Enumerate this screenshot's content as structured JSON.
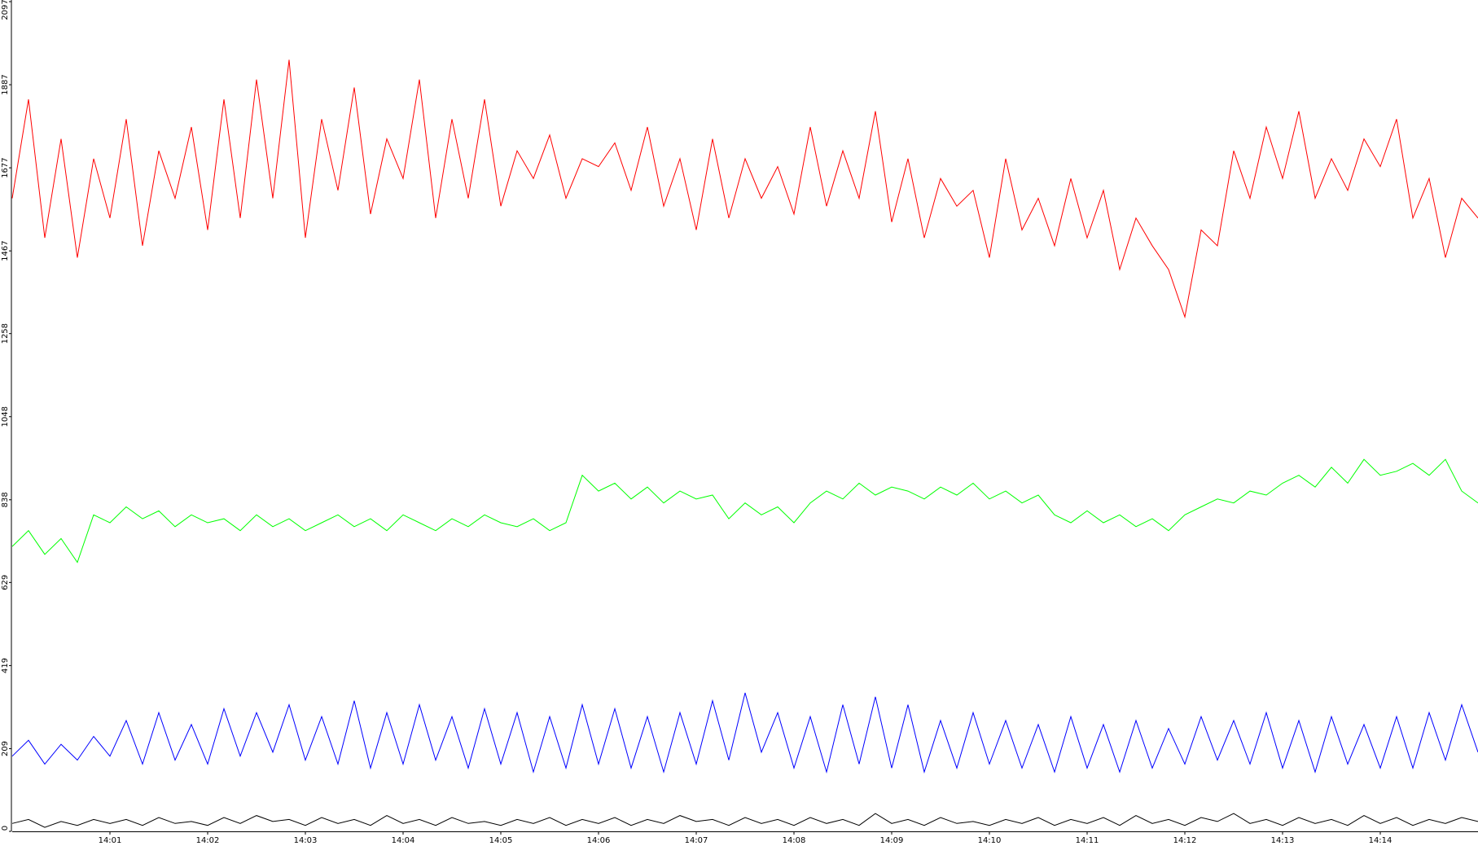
{
  "chart_data": {
    "type": "line",
    "x": [
      0,
      10,
      20,
      30,
      40,
      50,
      60,
      70,
      80,
      90,
      100,
      110,
      120,
      130,
      140,
      150,
      160,
      170,
      180,
      190,
      200,
      210,
      220,
      230,
      240,
      250,
      260,
      270,
      280,
      290,
      300,
      310,
      320,
      330,
      340,
      350,
      360,
      370,
      380,
      390,
      400,
      410,
      420,
      430,
      440,
      450,
      460,
      470,
      480,
      490,
      500,
      510,
      520,
      530,
      540,
      550,
      560,
      570,
      580,
      590,
      600,
      610,
      620,
      630,
      640,
      650,
      660,
      670,
      680,
      690,
      700,
      710,
      720,
      730,
      740,
      750,
      760,
      770,
      780,
      790,
      800,
      810,
      820,
      830,
      840,
      850,
      860,
      870,
      880,
      890,
      900
    ],
    "xlim": [
      0,
      900
    ],
    "xticks": [
      {
        "value": 60,
        "label": "14:01"
      },
      {
        "value": 120,
        "label": "14:02"
      },
      {
        "value": 180,
        "label": "14:03"
      },
      {
        "value": 240,
        "label": "14:04"
      },
      {
        "value": 300,
        "label": "14:05"
      },
      {
        "value": 360,
        "label": "14:06"
      },
      {
        "value": 420,
        "label": "14:07"
      },
      {
        "value": 480,
        "label": "14:08"
      },
      {
        "value": 540,
        "label": "14:09"
      },
      {
        "value": 600,
        "label": "14:10"
      },
      {
        "value": 660,
        "label": "14:11"
      },
      {
        "value": 720,
        "label": "14:12"
      },
      {
        "value": 780,
        "label": "14:13"
      },
      {
        "value": 840,
        "label": "14:14"
      }
    ],
    "ylim": [
      0,
      2097
    ],
    "yticks": [
      0,
      209,
      419,
      629,
      838,
      1048,
      1258,
      1467,
      1677,
      1887,
      2097
    ],
    "series": [
      {
        "color": "#ff0000",
        "values": [
          1600,
          1850,
          1500,
          1750,
          1450,
          1700,
          1550,
          1800,
          1480,
          1720,
          1600,
          1780,
          1520,
          1850,
          1550,
          1900,
          1600,
          1950,
          1500,
          1800,
          1620,
          1880,
          1560,
          1750,
          1650,
          1900,
          1550,
          1800,
          1600,
          1850,
          1580,
          1720,
          1650,
          1760,
          1600,
          1700,
          1680,
          1740,
          1620,
          1780,
          1580,
          1700,
          1520,
          1750,
          1550,
          1700,
          1600,
          1680,
          1560,
          1780,
          1580,
          1720,
          1600,
          1820,
          1540,
          1700,
          1500,
          1650,
          1580,
          1620,
          1450,
          1700,
          1520,
          1600,
          1480,
          1650,
          1500,
          1620,
          1420,
          1550,
          1480,
          1420,
          1300,
          1520,
          1480,
          1720,
          1600,
          1780,
          1650,
          1820,
          1600,
          1700,
          1620,
          1750,
          1680,
          1800,
          1550,
          1650,
          1450,
          1600,
          1550
        ]
      },
      {
        "color": "#00ff00",
        "values": [
          720,
          760,
          700,
          740,
          680,
          800,
          780,
          820,
          790,
          810,
          770,
          800,
          780,
          790,
          760,
          800,
          770,
          790,
          760,
          780,
          800,
          770,
          790,
          760,
          800,
          780,
          760,
          790,
          770,
          800,
          780,
          770,
          790,
          760,
          780,
          900,
          860,
          880,
          840,
          870,
          830,
          860,
          840,
          850,
          790,
          830,
          800,
          820,
          780,
          830,
          860,
          840,
          880,
          850,
          870,
          860,
          840,
          870,
          850,
          880,
          840,
          860,
          830,
          850,
          800,
          780,
          810,
          780,
          800,
          770,
          790,
          760,
          800,
          820,
          840,
          830,
          860,
          850,
          880,
          900,
          870,
          920,
          880,
          940,
          900,
          910,
          930,
          900,
          940,
          860,
          830
        ]
      },
      {
        "color": "#0000ff",
        "values": [
          190,
          230,
          170,
          220,
          180,
          240,
          190,
          280,
          170,
          300,
          180,
          270,
          170,
          310,
          190,
          300,
          200,
          320,
          180,
          290,
          170,
          330,
          160,
          300,
          170,
          320,
          180,
          290,
          160,
          310,
          170,
          300,
          150,
          290,
          160,
          320,
          170,
          310,
          160,
          290,
          150,
          300,
          170,
          330,
          180,
          350,
          200,
          300,
          160,
          290,
          150,
          320,
          170,
          340,
          160,
          320,
          150,
          280,
          160,
          300,
          170,
          280,
          160,
          270,
          150,
          290,
          160,
          270,
          150,
          280,
          160,
          260,
          170,
          290,
          180,
          280,
          170,
          300,
          160,
          280,
          150,
          290,
          170,
          270,
          160,
          290,
          160,
          300,
          180,
          320,
          200
        ]
      },
      {
        "color": "#000000",
        "values": [
          20,
          30,
          10,
          25,
          15,
          30,
          20,
          30,
          15,
          35,
          20,
          25,
          15,
          35,
          20,
          40,
          25,
          30,
          15,
          35,
          20,
          30,
          15,
          40,
          20,
          30,
          15,
          35,
          20,
          25,
          15,
          30,
          20,
          35,
          15,
          30,
          20,
          35,
          15,
          30,
          20,
          40,
          25,
          30,
          15,
          35,
          20,
          30,
          15,
          35,
          20,
          30,
          15,
          45,
          20,
          30,
          15,
          35,
          20,
          25,
          15,
          30,
          20,
          35,
          15,
          30,
          20,
          35,
          15,
          40,
          20,
          30,
          15,
          35,
          25,
          45,
          20,
          30,
          15,
          35,
          20,
          30,
          15,
          40,
          20,
          35,
          15,
          30,
          20,
          35,
          25
        ]
      }
    ]
  }
}
